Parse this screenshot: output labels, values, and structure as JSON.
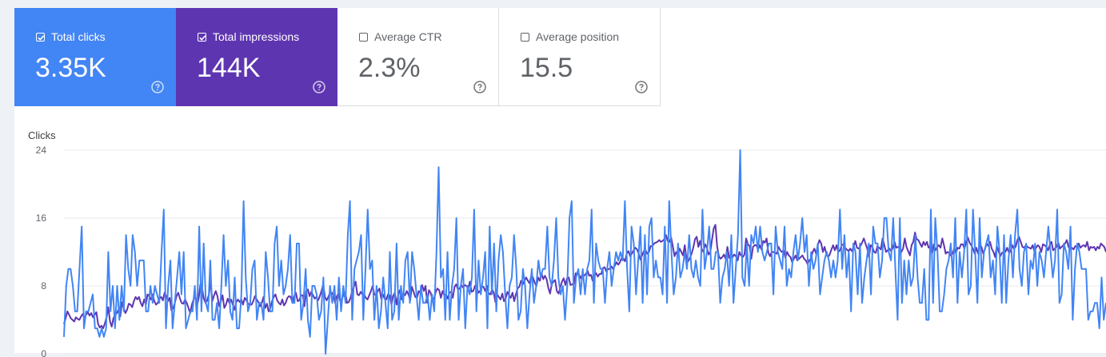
{
  "cards": [
    {
      "label": "Total clicks",
      "value": "3.35K",
      "checked": true,
      "color": "#4285f4"
    },
    {
      "label": "Total impressions",
      "value": "144K",
      "checked": true,
      "color": "#5e35b1"
    },
    {
      "label": "Average CTR",
      "value": "2.3%",
      "checked": false
    },
    {
      "label": "Average position",
      "value": "15.5",
      "checked": false
    }
  ],
  "chart_data": {
    "type": "line",
    "ylabel": "Clicks",
    "yticks": [
      "24",
      "16",
      "8",
      "0"
    ],
    "ylim": [
      0,
      24
    ],
    "grid": true,
    "series": [
      {
        "name": "Total clicks",
        "color": "#4285f4",
        "values": [
          2,
          8,
          10,
          10,
          8,
          5,
          5,
          10,
          15,
          3,
          5,
          5,
          6,
          7,
          3,
          3,
          2,
          3,
          2,
          3,
          12,
          5,
          8,
          3,
          8,
          4,
          8,
          5,
          14,
          10,
          8,
          14,
          12,
          8,
          11,
          11,
          11,
          5,
          5,
          8,
          6,
          8,
          7,
          6,
          12,
          17,
          3,
          8,
          11,
          3,
          6,
          9,
          12,
          7,
          12,
          3,
          4,
          5,
          5,
          8,
          4,
          15,
          5,
          13,
          6,
          5,
          11,
          4,
          4,
          6,
          3,
          8,
          14,
          8,
          11,
          5,
          4,
          9,
          3,
          3,
          7,
          18,
          9,
          5,
          6,
          10,
          11,
          4,
          6,
          6,
          4,
          12,
          9,
          5,
          5,
          13,
          15,
          8,
          11,
          7,
          8,
          10,
          14,
          6,
          6,
          13,
          13,
          4,
          6,
          10,
          4,
          2,
          8,
          8,
          7,
          4,
          5,
          9,
          0,
          4,
          8,
          6,
          8,
          4,
          9,
          5,
          8,
          6,
          14,
          18,
          4,
          10,
          11,
          12,
          14,
          4,
          10,
          17,
          10,
          11,
          4,
          8,
          3,
          5,
          9,
          6,
          3,
          12,
          4,
          5,
          13,
          4,
          8,
          6,
          11,
          12,
          6,
          12,
          10,
          7,
          4,
          8,
          6,
          6,
          7,
          4,
          7,
          5,
          12,
          22,
          9,
          10,
          4,
          12,
          4,
          8,
          10,
          16,
          4,
          8,
          10,
          3,
          8,
          7,
          9,
          17,
          5,
          11,
          7,
          9,
          12,
          3,
          15,
          7,
          13,
          5,
          11,
          14,
          12,
          7,
          3,
          8,
          9,
          14,
          10,
          4,
          5,
          10,
          8,
          3,
          7,
          10,
          6,
          8,
          11,
          9,
          10,
          10,
          15,
          9,
          8,
          11,
          16,
          9,
          7,
          8,
          4,
          8,
          16,
          18,
          6,
          9,
          10,
          7,
          10,
          7,
          10,
          11,
          17,
          6,
          13,
          11,
          10,
          10,
          6,
          10,
          12,
          8,
          10,
          12,
          11,
          12,
          11,
          18,
          10,
          5,
          15,
          13,
          7,
          11,
          15,
          6,
          14,
          7,
          15,
          16,
          9,
          11,
          9,
          9,
          7,
          15,
          6,
          18,
          12,
          7,
          9,
          13,
          9,
          10,
          12,
          10,
          14,
          10,
          9,
          11,
          9,
          8,
          17,
          10,
          12,
          15,
          10,
          10,
          12,
          12,
          6,
          9,
          10,
          12,
          8,
          14,
          6,
          10,
          14,
          24,
          9,
          8,
          13,
          8,
          14,
          13,
          15,
          12,
          15,
          12,
          11,
          12,
          13,
          13,
          7,
          15,
          12,
          11,
          10,
          15,
          8,
          10,
          9,
          12,
          14,
          11,
          13,
          16,
          12,
          14,
          8,
          12,
          10,
          11,
          13,
          7,
          9,
          11,
          12,
          11,
          9,
          11,
          9,
          11,
          17,
          10,
          14,
          9,
          12,
          5,
          13,
          12,
          7,
          13,
          6,
          9,
          11,
          13,
          7,
          15,
          13,
          13,
          9,
          11,
          16,
          16,
          12,
          11,
          16,
          10,
          4,
          16,
          6,
          11,
          7,
          11,
          8,
          9,
          14,
          9,
          6,
          6,
          10,
          4,
          4,
          17,
          6,
          16,
          12,
          5,
          5,
          7,
          10,
          11,
          13,
          9,
          16,
          6,
          12,
          9,
          12,
          17,
          7,
          8,
          17,
          12,
          6,
          16,
          9,
          12,
          13,
          14,
          9,
          11,
          7,
          15,
          12,
          6,
          14,
          6,
          11,
          14,
          9,
          14,
          17,
          10,
          8,
          12,
          13,
          7,
          11,
          10,
          13,
          8,
          12,
          11,
          9,
          12,
          15,
          12,
          9,
          11,
          17,
          6,
          7,
          13,
          12,
          10,
          15,
          4,
          10,
          13,
          12,
          10,
          10,
          10,
          4,
          5,
          5,
          6,
          6,
          3,
          9,
          4,
          6
        ]
      },
      {
        "name": "Total impressions",
        "color": "#5e35b1",
        "values": [
          3.5,
          4.2,
          5.0,
          4.6,
          4.2,
          4.0,
          3.8,
          4.3,
          4.1,
          4.0,
          4.4,
          4.7,
          4.2,
          4.6,
          4.9,
          4.5,
          4.8,
          4.3,
          4.6,
          4.9,
          3.5,
          3.1,
          3.3,
          3.0,
          3.6,
          4.3,
          5.5,
          3.8,
          3.2,
          4.2,
          4.6,
          4.8,
          5.2,
          4.4,
          6.1,
          5.4,
          4.8,
          5.2,
          5.9,
          5.8,
          5.5,
          6.2,
          6.7,
          6.4,
          6.7,
          6.0,
          5.6,
          6.4,
          5.8,
          7.0,
          6.8,
          6.4,
          7.0,
          6.2,
          5.8,
          6.0,
          6.5,
          6.7,
          6.3,
          7.2,
          6.8,
          6.2,
          6.6,
          5.1,
          5.4,
          6.0,
          6.8,
          7.2,
          6.5,
          6.0,
          5.9,
          6.4,
          6.0,
          5.4,
          4.8,
          5.8,
          6.4,
          6.9,
          5.6,
          6.6,
          8.2,
          7.7,
          6.5,
          6.0,
          6.3,
          7.0,
          8.6,
          6.2,
          6.9,
          7.4,
          6.8,
          5.6,
          6.2,
          6.9,
          5.4,
          5.8,
          6.5,
          6.0,
          6.4,
          5.8,
          5.2,
          6.1,
          6.4,
          6.1,
          6.4,
          5.8,
          6.6,
          6.3,
          5.9,
          5.8,
          5.8,
          6.2,
          6.8,
          6.4,
          6.1,
          5.6,
          6.0,
          6.7,
          5.4,
          5.9,
          5.0,
          5.4,
          6.2,
          6.7,
          7.0,
          6.3,
          6.0,
          5.8,
          6.4,
          5.7,
          6.0,
          6.6,
          6.8,
          6.7,
          6.0,
          6.8,
          7.2,
          6.2,
          6.3,
          6.9,
          6.9,
          5.6,
          7.4,
          7.6,
          6.8,
          7.3,
          6.9,
          6.5,
          6.7,
          6.3,
          6.8,
          7.4,
          8.2,
          6.7,
          6.3,
          6.7,
          7.2,
          7.2,
          6.9,
          6.0,
          6.8,
          7.1,
          6.2,
          6.4,
          7.1,
          7.2,
          6.0,
          6.1,
          6.6,
          7.4,
          7.9,
          8.5,
          7.0,
          6.9,
          7.3,
          7.0,
          7.0,
          6.6,
          6.4,
          6.9,
          7.4,
          8.0,
          7.0,
          6.9,
          7.4,
          7.7,
          6.5,
          7.0,
          6.5,
          6.4,
          7.0,
          6.9,
          5.8,
          6.8,
          7.2,
          5.8,
          7.0,
          7.5,
          6.4,
          7.1,
          6.9,
          7.4,
          7.0,
          6.3,
          7.9,
          7.3,
          6.7,
          6.6,
          7.4,
          7.2,
          8.1,
          7.4,
          8.0,
          6.0,
          7.5,
          7.2,
          6.4,
          6.5,
          7.3,
          7.7,
          7.5,
          6.6,
          7.4,
          6.9,
          7.0,
          6.5,
          7.2,
          7.3,
          6.6,
          7.9,
          8.2,
          7.6,
          7.7,
          8.1,
          7.8,
          8.1,
          8.0,
          7.7,
          8.5,
          7.3,
          7.4,
          8.0,
          7.9,
          7.2,
          7.4,
          7.9,
          7.9,
          7.4,
          8.0,
          7.1,
          7.0,
          7.6,
          7.2,
          6.1,
          7.0,
          6.7,
          6.4,
          7.1,
          6.2,
          6.5,
          7.3,
          6.9,
          6.6,
          7.2,
          6.2,
          7.0,
          7.7,
          7.9,
          8.6,
          8.2,
          8.6,
          9.0,
          8.6,
          8.3,
          9.2,
          9.0,
          8.4,
          8.0,
          9.0,
          8.6,
          9.5,
          8.8,
          9.2,
          8.8,
          7.8,
          7.1,
          8.2,
          8.5,
          8.7,
          7.4,
          7.1,
          7.8,
          8.5,
          8.9,
          8.1,
          8.9,
          9.0,
          8.1,
          8.2,
          8.2,
          9.5,
          9.4,
          9.3,
          8.9,
          9.4,
          9.2,
          9.4,
          9.8,
          9.2,
          9.3,
          8.6,
          9.2,
          9.5,
          9.1,
          9.4,
          9.4,
          10.1,
          10.2,
          9.7,
          10.0,
          10.0,
          10.3,
          10.0,
          10.4,
          10.8,
          10.5,
          10.8,
          11.3,
          11.2,
          10.9,
          11.8,
          12.1,
          11.5,
          11.8,
          12.2,
          12.5,
          12.3,
          11.8,
          11.1,
          11.6,
          12.1,
          12.2,
          11.8,
          12.0,
          12.7,
          12.7,
          13.0,
          13.1,
          13.2,
          13.4,
          13.2,
          13.3,
          13.5,
          14.0,
          13.3,
          13.2,
          13.7,
          12.7,
          11.5,
          12.0,
          11.6,
          12.4,
          12.0,
          11.6,
          12.8,
          11.2,
          10.9,
          11.3,
          11.8,
          12.5,
          13.5,
          13.8,
          12.6,
          13.3,
          12.3,
          12.0,
          12.9,
          12.5,
          11.7,
          12.0,
          13.5,
          14.8,
          15.2,
          12.6,
          11.5,
          11.2,
          11.4,
          11.7,
          11.2,
          12.6,
          11.3,
          11.7,
          11.4,
          11.7,
          11.5,
          11.0,
          12.0,
          11.6,
          11.4,
          11.7,
          13.6,
          12.9,
          12.7,
          11.2,
          12.6,
          12.8,
          12.8,
          12.3,
          12.8,
          12.3,
          13.3,
          13.1,
          13.6,
          11.9,
          11.5,
          12.0,
          12.0,
          11.9,
          11.8,
          12.6,
          12.2,
          12.0,
          12.2,
          11.3,
          12.0,
          11.6,
          11.4,
          10.8,
          11.2,
          11.6,
          11.0,
          11.2,
          11.4,
          11.6,
          11.2,
          11.0,
          10.6,
          11.0,
          11.2,
          12.0,
          12.4,
          11.8,
          12.8,
          13.4,
          13.0,
          12.0,
          12.6,
          11.8,
          11.4,
          11.7,
          12.3,
          12.8,
          12.2,
          12.8,
          12.0,
          12.2,
          12.8,
          12.9,
          12.5,
          12.3,
          12.1,
          12.4,
          12.1,
          12.6,
          13.3,
          12.5,
          12.4,
          12.7,
          13.1,
          13.6,
          13.0,
          12.4,
          11.4,
          12.8,
          12.6,
          12.0,
          11.9,
          12.7,
          12.5,
          12.3,
          13.6,
          12.8,
          12.0,
          12.2,
          12.4,
          12.1,
          12.5,
          13.2,
          12.5,
          12.6,
          12.5,
          12.0,
          12.4,
          13.6,
          12.6,
          12.1,
          11.6,
          12.8,
          13.2,
          14.3,
          13.5,
          13.4,
          13.0,
          12.6,
          13.2,
          12.8,
          13.2,
          12.5,
          12.7,
          11.8,
          12.9,
          12.2,
          12.6,
          12.8,
          12.5,
          13.6,
          12.8,
          11.8,
          12.0,
          11.9,
          11.6,
          11.8,
          12.4,
          11.9,
          12.5,
          12.4,
          12.9,
          12.9,
          12.4,
          13.2,
          13.7,
          13.1,
          12.8,
          12.4,
          11.8,
          12.5,
          11.8,
          12.9,
          12.6,
          11.8,
          12.3,
          13.0,
          12.7,
          13.2,
          12.4,
          12.0,
          11.4,
          12.7,
          12.1,
          11.5,
          11.9,
          12.0,
          12.0,
          12.5,
          12.0,
          12.0,
          12.8,
          12.4,
          12.6,
          13.4,
          13.8,
          13.2,
          12.6,
          12.5,
          12.8,
          12.6,
          12.5,
          12.4,
          12.8,
          12.1,
          12.5,
          12.8,
          12.6,
          12.0,
          12.9,
          12.8,
          12.6,
          12.2,
          12.8,
          13.2,
          12.2,
          12.4,
          12.6,
          13.1,
          12.4,
          12.6,
          12.8,
          13.0,
          13.4,
          12.6,
          12.3,
          12.5,
          12.3,
          12.7,
          12.6,
          13.0,
          12.5,
          12.7,
          12.8,
          12.6,
          13.2,
          12.2,
          12.6,
          12.5,
          12.6,
          12.2,
          12.6,
          12.4,
          13.0,
          12.8,
          12.6,
          12.0
        ]
      }
    ]
  },
  "colors": {
    "gridline": "#e8eaed",
    "axis_text": "#5f6368"
  }
}
